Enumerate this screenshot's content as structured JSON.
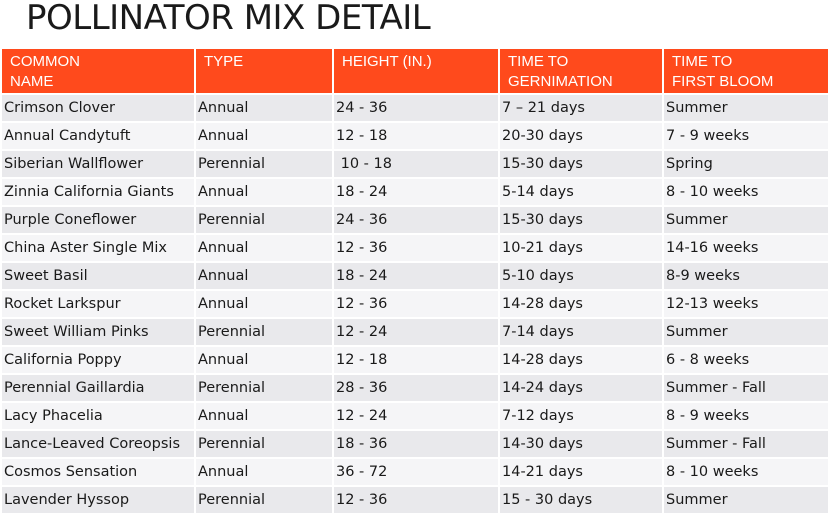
{
  "title": "POLLINATOR MIX DETAIL",
  "colors": {
    "header_bg": "#ff4a1c",
    "header_text": "#ffffff",
    "row_odd": "#e9e9ec",
    "row_even": "#f5f5f7"
  },
  "table": {
    "headers": [
      [
        "COMMON",
        "NAME"
      ],
      [
        "TYPE",
        ""
      ],
      [
        "HEIGHT (IN.)",
        ""
      ],
      [
        "TIME TO",
        "GERNIMATION"
      ],
      [
        "TIME TO",
        "FIRST BLOOM"
      ]
    ],
    "rows": [
      [
        "Crimson Clover",
        "Annual",
        "24 - 36",
        "7 – 21 days",
        "Summer"
      ],
      [
        "Annual Candytuft",
        "Annual",
        "12 - 18",
        "20-30 days",
        "7 - 9 weeks"
      ],
      [
        "Siberian Wallflower",
        "Perennial",
        " 10 - 18",
        "15-30 days",
        "Spring"
      ],
      [
        "Zinnia California Giants",
        "Annual",
        "18 - 24",
        "5-14 days",
        "8 - 10 weeks"
      ],
      [
        "Purple Coneflower",
        "Perennial",
        "24 - 36",
        "15-30 days",
        "Summer"
      ],
      [
        "China Aster Single Mix",
        "Annual",
        "12 - 36",
        "10-21 days",
        "14-16 weeks"
      ],
      [
        "Sweet Basil",
        "Annual",
        "18 - 24",
        "5-10 days",
        "8-9 weeks"
      ],
      [
        "Rocket Larkspur",
        "Annual",
        "12 - 36",
        "14-28 days",
        "12-13 weeks"
      ],
      [
        "Sweet William Pinks",
        "Perennial",
        "12 - 24",
        "7-14 days",
        "Summer"
      ],
      [
        "California Poppy",
        "Annual",
        "12 - 18",
        "14-28 days",
        "6 - 8 weeks"
      ],
      [
        "Perennial Gaillardia",
        "Perennial",
        "28 - 36",
        "14-24 days",
        "Summer - Fall"
      ],
      [
        "Lacy Phacelia",
        "Annual",
        "12 - 24",
        "7-12 days",
        "8 - 9 weeks"
      ],
      [
        "Lance-Leaved Coreopsis",
        "Perennial",
        "18 - 36",
        "14-30 days",
        "Summer - Fall"
      ],
      [
        "Cosmos Sensation",
        "Annual",
        "36 - 72",
        "14-21 days",
        "8 - 10 weeks"
      ],
      [
        "Lavender Hyssop",
        "Perennial",
        "12 - 36",
        "15 - 30 days",
        "Summer"
      ]
    ]
  }
}
